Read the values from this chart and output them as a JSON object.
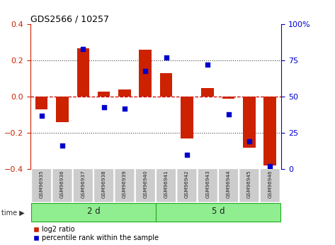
{
  "title": "GDS2566 / 10257",
  "samples": [
    "GSM96935",
    "GSM96936",
    "GSM96937",
    "GSM96938",
    "GSM96939",
    "GSM96940",
    "GSM96941",
    "GSM96942",
    "GSM96943",
    "GSM96944",
    "GSM96945",
    "GSM96946"
  ],
  "log2_ratio": [
    -0.07,
    -0.14,
    0.27,
    0.03,
    0.04,
    0.26,
    0.13,
    -0.23,
    0.05,
    -0.01,
    -0.28,
    -0.38
  ],
  "percentile_rank": [
    37,
    16,
    83,
    43,
    42,
    68,
    77,
    10,
    72,
    38,
    19,
    2
  ],
  "bar_color": "#cc2200",
  "dot_color": "#0000cc",
  "group1_label": "2 d",
  "group2_label": "5 d",
  "group1_indices": [
    0,
    1,
    2,
    3,
    4,
    5
  ],
  "group2_indices": [
    6,
    7,
    8,
    9,
    10,
    11
  ],
  "group_color": "#90ee90",
  "group_border_color": "#22aa22",
  "yticks_left": [
    -0.4,
    -0.2,
    0.0,
    0.2,
    0.4
  ],
  "yticks_right": [
    0,
    25,
    50,
    75,
    100
  ],
  "ylim_left": [
    -0.4,
    0.4
  ],
  "ylim_right": [
    0,
    100
  ],
  "hline_color": "#cc0000",
  "dotted_color": "#444444",
  "sample_bg_color": "#cccccc",
  "legend_red_label": "log2 ratio",
  "legend_blue_label": "percentile rank within the sample",
  "time_label": "time",
  "bar_width": 0.6,
  "figwidth": 4.73,
  "figheight": 3.45,
  "dpi": 100
}
